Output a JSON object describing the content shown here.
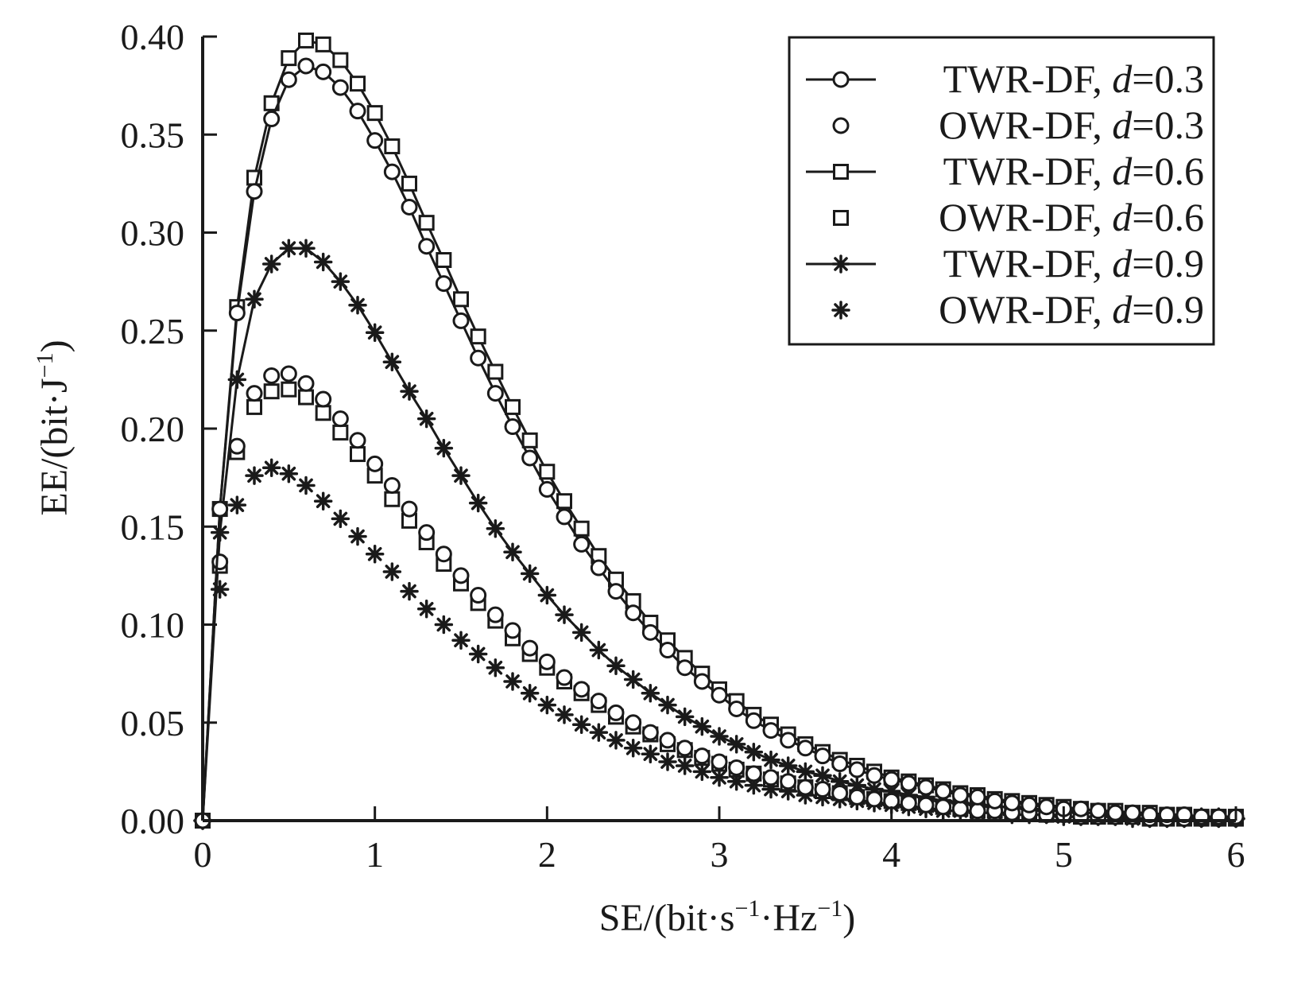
{
  "chart_data": {
    "type": "line",
    "xlabel_parts": [
      "SE/(bit·s",
      "−1",
      "·Hz",
      "−1",
      ")"
    ],
    "ylabel_parts": [
      "EE/(bit·J",
      "−1",
      ")"
    ],
    "xlim": [
      0,
      6
    ],
    "ylim": [
      0,
      0.4
    ],
    "x_ticks": [
      0,
      1,
      2,
      3,
      4,
      5,
      6
    ],
    "x_tick_labels": [
      "0",
      "1",
      "2",
      "3",
      "4",
      "5",
      "6"
    ],
    "y_ticks": [
      0,
      0.05,
      0.1,
      0.15,
      0.2,
      0.25,
      0.3,
      0.35,
      0.4
    ],
    "y_tick_labels": [
      "0.00",
      "0.05",
      "0.10",
      "0.15",
      "0.20",
      "0.25",
      "0.30",
      "0.35",
      "0.40"
    ],
    "grid": false,
    "legend_position": "top-right",
    "colors": {
      "line": "#1a1a1a",
      "background": "#ffffff"
    },
    "x": [
      0,
      0.1,
      0.2,
      0.3,
      0.4,
      0.5,
      0.6,
      0.7,
      0.8,
      0.9,
      1.0,
      1.1,
      1.2,
      1.3,
      1.4,
      1.5,
      1.6,
      1.7,
      1.8,
      1.9,
      2.0,
      2.1,
      2.2,
      2.3,
      2.4,
      2.5,
      2.6,
      2.7,
      2.8,
      2.9,
      3.0,
      3.1,
      3.2,
      3.3,
      3.4,
      3.5,
      3.6,
      3.7,
      3.8,
      3.9,
      4.0,
      4.1,
      4.2,
      4.3,
      4.4,
      4.5,
      4.6,
      4.7,
      4.8,
      4.9,
      5.0,
      5.1,
      5.2,
      5.3,
      5.4,
      5.5,
      5.6,
      5.7,
      5.8,
      5.9,
      6.0
    ],
    "series": [
      {
        "name": "TWR-DF, ",
        "d_label": "d",
        "d_value": "=0.3",
        "marker": "circle",
        "line": true,
        "values": [
          0.0,
          0.159,
          0.259,
          0.321,
          0.358,
          0.378,
          0.385,
          0.382,
          0.374,
          0.362,
          0.347,
          0.331,
          0.313,
          0.293,
          0.274,
          0.255,
          0.236,
          0.218,
          0.201,
          0.185,
          0.169,
          0.155,
          0.141,
          0.129,
          0.117,
          0.106,
          0.096,
          0.087,
          0.078,
          0.071,
          0.064,
          0.057,
          0.051,
          0.046,
          0.041,
          0.037,
          0.033,
          0.029,
          0.026,
          0.023,
          0.021,
          0.019,
          0.017,
          0.015,
          0.013,
          0.012,
          0.01,
          0.009,
          0.008,
          0.007,
          0.006,
          0.006,
          0.005,
          0.004,
          0.004,
          0.003,
          0.003,
          0.003,
          0.002,
          0.002,
          0.002
        ]
      },
      {
        "name": "OWR-DF, ",
        "d_label": "d",
        "d_value": "=0.3",
        "marker": "circle",
        "line": false,
        "values": [
          0.0,
          0.132,
          0.191,
          0.218,
          0.227,
          0.228,
          0.223,
          0.215,
          0.205,
          0.194,
          0.182,
          0.171,
          0.159,
          0.147,
          0.136,
          0.125,
          0.115,
          0.105,
          0.097,
          0.088,
          0.081,
          0.073,
          0.067,
          0.061,
          0.055,
          0.05,
          0.045,
          0.041,
          0.037,
          0.033,
          0.03,
          0.027,
          0.024,
          0.022,
          0.02,
          0.017,
          0.016,
          0.014,
          0.012,
          0.011,
          0.01,
          0.009,
          0.008,
          0.007,
          0.006,
          0.005,
          0.005,
          0.004,
          0.004,
          0.003,
          0.003,
          0.002,
          0.002,
          0.002,
          0.002,
          0.001,
          0.001,
          0.001,
          0.001,
          0.001,
          0.001
        ]
      },
      {
        "name": "TWR-DF, ",
        "d_label": "d",
        "d_value": "=0.6",
        "marker": "square",
        "line": true,
        "values": [
          0.0,
          0.159,
          0.262,
          0.328,
          0.366,
          0.389,
          0.398,
          0.396,
          0.388,
          0.376,
          0.361,
          0.344,
          0.325,
          0.305,
          0.286,
          0.266,
          0.247,
          0.229,
          0.211,
          0.194,
          0.178,
          0.163,
          0.149,
          0.135,
          0.123,
          0.112,
          0.101,
          0.092,
          0.083,
          0.075,
          0.067,
          0.061,
          0.054,
          0.049,
          0.044,
          0.039,
          0.035,
          0.031,
          0.028,
          0.025,
          0.022,
          0.02,
          0.018,
          0.016,
          0.014,
          0.013,
          0.011,
          0.01,
          0.009,
          0.008,
          0.007,
          0.006,
          0.005,
          0.005,
          0.004,
          0.004,
          0.003,
          0.003,
          0.002,
          0.002,
          0.002
        ]
      },
      {
        "name": "OWR-DF, ",
        "d_label": "d",
        "d_value": "=0.6",
        "marker": "square",
        "line": false,
        "values": [
          0.0,
          0.13,
          0.188,
          0.211,
          0.219,
          0.22,
          0.216,
          0.208,
          0.198,
          0.187,
          0.176,
          0.164,
          0.153,
          0.142,
          0.131,
          0.121,
          0.111,
          0.102,
          0.093,
          0.085,
          0.078,
          0.071,
          0.065,
          0.059,
          0.053,
          0.048,
          0.044,
          0.039,
          0.036,
          0.032,
          0.029,
          0.026,
          0.024,
          0.021,
          0.019,
          0.017,
          0.015,
          0.014,
          0.012,
          0.011,
          0.01,
          0.009,
          0.008,
          0.007,
          0.006,
          0.005,
          0.005,
          0.004,
          0.004,
          0.003,
          0.003,
          0.002,
          0.002,
          0.002,
          0.002,
          0.001,
          0.001,
          0.001,
          0.001,
          0.001,
          0.001
        ]
      },
      {
        "name": "TWR-DF, ",
        "d_label": "d",
        "d_value": "=0.9",
        "marker": "asterisk",
        "line": true,
        "values": [
          0.0,
          0.147,
          0.225,
          0.266,
          0.284,
          0.292,
          0.292,
          0.285,
          0.275,
          0.263,
          0.249,
          0.234,
          0.219,
          0.205,
          0.19,
          0.176,
          0.162,
          0.149,
          0.137,
          0.126,
          0.115,
          0.105,
          0.096,
          0.087,
          0.079,
          0.072,
          0.065,
          0.059,
          0.053,
          0.048,
          0.043,
          0.039,
          0.035,
          0.031,
          0.028,
          0.025,
          0.023,
          0.02,
          0.018,
          0.016,
          0.015,
          0.013,
          0.012,
          0.01,
          0.009,
          0.008,
          0.007,
          0.007,
          0.006,
          0.005,
          0.005,
          0.004,
          0.004,
          0.003,
          0.003,
          0.003,
          0.002,
          0.002,
          0.002,
          0.002,
          0.001
        ]
      },
      {
        "name": "OWR-DF, ",
        "d_label": "d",
        "d_value": "=0.9",
        "marker": "asterisk",
        "line": false,
        "values": [
          0.0,
          0.118,
          0.161,
          0.176,
          0.18,
          0.177,
          0.171,
          0.163,
          0.154,
          0.145,
          0.136,
          0.127,
          0.117,
          0.108,
          0.1,
          0.092,
          0.085,
          0.078,
          0.071,
          0.065,
          0.059,
          0.054,
          0.049,
          0.045,
          0.041,
          0.037,
          0.034,
          0.03,
          0.028,
          0.025,
          0.022,
          0.02,
          0.018,
          0.016,
          0.015,
          0.013,
          0.012,
          0.011,
          0.01,
          0.009,
          0.008,
          0.007,
          0.006,
          0.005,
          0.005,
          0.004,
          0.004,
          0.003,
          0.003,
          0.003,
          0.002,
          0.002,
          0.002,
          0.002,
          0.001,
          0.001,
          0.001,
          0.001,
          0.001,
          0.001,
          0.001
        ]
      }
    ]
  }
}
